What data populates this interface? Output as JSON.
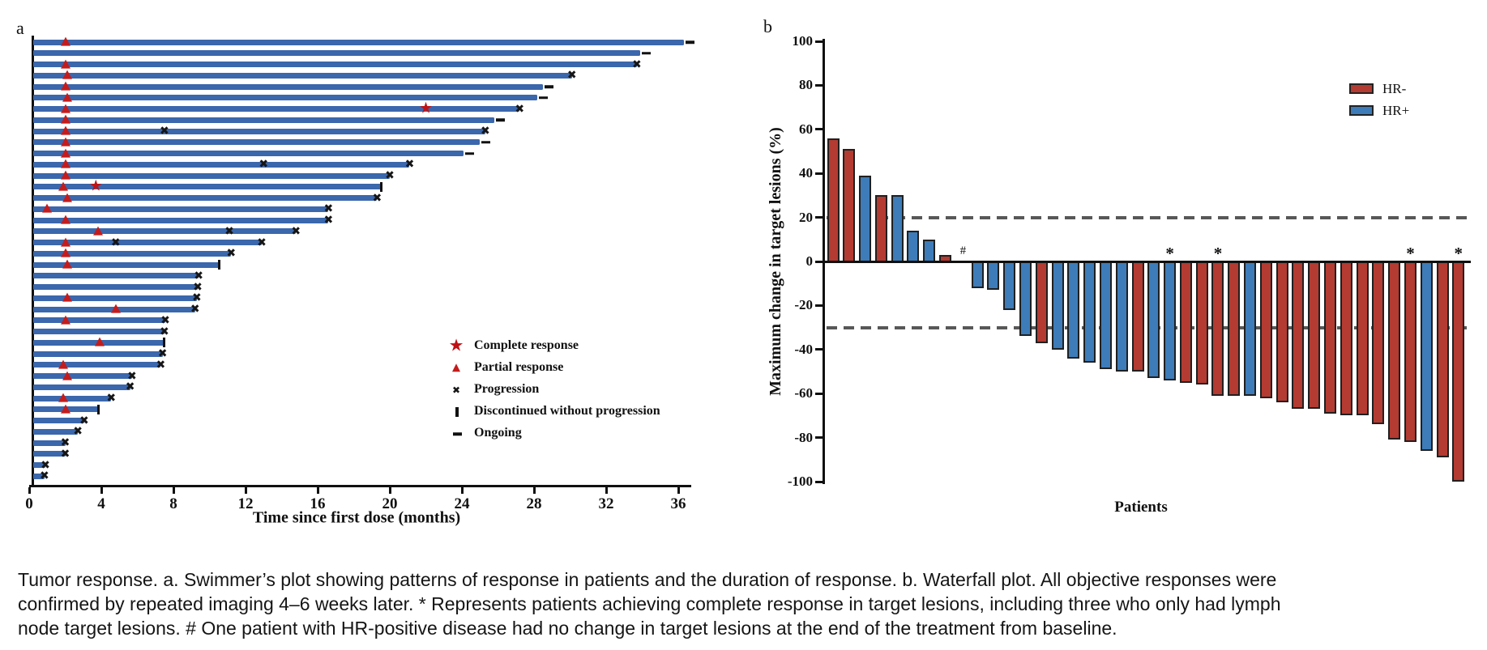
{
  "colors": {
    "swimmer_bar": "#3b67ac",
    "marker_red": "#c41c1c",
    "star_red": "#bf1216",
    "marker_black": "#161616",
    "hr_negative": "#b33b32",
    "hr_positive": "#3d7cb8",
    "reference_line": "#585858"
  },
  "caption": {
    "lines": [
      "Tumor response. a. Swimmer’s plot showing patterns of response in patients and the duration of response. b. Waterfall plot. All objective responses were",
      "confirmed by repeated imaging 4–6 weeks later. * Represents patients achieving complete response in target lesions, including three who only had lymph",
      "node target lesions. # One patient with HR-positive disease had no change in target lesions at the end of the treatment from baseline."
    ]
  },
  "chart_data": [
    {
      "type": "swimmer",
      "panel_tag": "a",
      "xlabel": "Time since first dose (months)",
      "x_ticks": [
        0,
        4,
        8,
        12,
        16,
        20,
        24,
        28,
        32,
        36
      ],
      "xlim": [
        0,
        36.7
      ],
      "grid": false,
      "legend_position": "center-right",
      "legend": [
        {
          "marker": "star",
          "label": "Complete response"
        },
        {
          "marker": "triangle",
          "label": "Partial response"
        },
        {
          "marker": "x",
          "label": "Progression"
        },
        {
          "marker": "bar",
          "label": "Discontinued without progression"
        },
        {
          "marker": "dash",
          "label": "Ongoing"
        }
      ],
      "patients": [
        {
          "end": 36.3,
          "status": "ongoing",
          "pr": 2.0
        },
        {
          "end": 33.9,
          "status": "ongoing"
        },
        {
          "end": 33.7,
          "status": "progression",
          "pr": 2.0
        },
        {
          "end": 30.1,
          "status": "progression",
          "pr": 2.1
        },
        {
          "end": 28.5,
          "status": "ongoing",
          "pr": 2.0
        },
        {
          "end": 28.2,
          "status": "ongoing",
          "pr": 2.1
        },
        {
          "end": 27.2,
          "status": "progression",
          "pr": 2.0,
          "cr": 22.0
        },
        {
          "end": 25.8,
          "status": "ongoing",
          "pr": 2.0
        },
        {
          "end": 25.3,
          "status": "progression",
          "pr": 2.0,
          "progression_events": [
            7.5
          ]
        },
        {
          "end": 25.0,
          "status": "ongoing",
          "pr": 2.0
        },
        {
          "end": 24.1,
          "status": "ongoing",
          "pr": 2.0
        },
        {
          "end": 21.1,
          "status": "progression",
          "pr": 2.0,
          "progression_events": [
            13.0
          ]
        },
        {
          "end": 20.0,
          "status": "progression",
          "pr": 2.0
        },
        {
          "end": 19.5,
          "status": "discontinued",
          "pr": 1.9,
          "cr": 3.7
        },
        {
          "end": 19.3,
          "status": "progression",
          "pr": 2.1
        },
        {
          "end": 16.6,
          "status": "progression",
          "pr": 1.0
        },
        {
          "end": 16.6,
          "status": "progression",
          "pr": 2.0
        },
        {
          "end": 14.8,
          "status": "progression",
          "pr": 3.8,
          "progression_events": [
            11.1
          ]
        },
        {
          "end": 12.9,
          "status": "progression",
          "pr": 2.0,
          "progression_events": [
            4.8
          ]
        },
        {
          "end": 11.2,
          "status": "progression",
          "pr": 2.0
        },
        {
          "end": 10.5,
          "status": "discontinued",
          "pr": 2.1
        },
        {
          "end": 9.4,
          "status": "progression"
        },
        {
          "end": 9.35,
          "status": "progression"
        },
        {
          "end": 9.3,
          "status": "progression",
          "pr": 2.1
        },
        {
          "end": 9.2,
          "status": "progression",
          "pr": 4.8
        },
        {
          "end": 7.55,
          "status": "progression",
          "pr": 2.0
        },
        {
          "end": 7.5,
          "status": "progression"
        },
        {
          "end": 7.45,
          "status": "discontinued",
          "pr": 3.9
        },
        {
          "end": 7.4,
          "status": "progression"
        },
        {
          "end": 7.3,
          "status": "progression",
          "pr": 1.9
        },
        {
          "end": 5.7,
          "status": "progression",
          "pr": 2.1
        },
        {
          "end": 5.6,
          "status": "progression"
        },
        {
          "end": 4.55,
          "status": "progression",
          "pr": 1.9
        },
        {
          "end": 3.8,
          "status": "discontinued",
          "pr": 2.0
        },
        {
          "end": 3.05,
          "status": "progression"
        },
        {
          "end": 2.7,
          "status": "progression"
        },
        {
          "end": 2.0,
          "status": "progression"
        },
        {
          "end": 2.0,
          "status": "progression"
        },
        {
          "end": 0.9,
          "status": "progression"
        },
        {
          "end": 0.85,
          "status": "progression"
        }
      ]
    },
    {
      "type": "waterfall-bar",
      "panel_tag": "b",
      "ylabel": "Maximum change in target lesions (%)",
      "xlabel": "Patients",
      "y_ticks": [
        100,
        80,
        60,
        40,
        20,
        0,
        -20,
        -40,
        -60,
        -80,
        -100
      ],
      "ylim": [
        -100,
        100
      ],
      "reference_lines": [
        20,
        -30
      ],
      "legend_position": "top-right",
      "legend": [
        {
          "label": "HR-",
          "color_key": "hr_negative"
        },
        {
          "label": "HR+",
          "color_key": "hr_positive"
        }
      ],
      "bars": [
        {
          "value": 56,
          "group": "HR-"
        },
        {
          "value": 51,
          "group": "HR-"
        },
        {
          "value": 39,
          "group": "HR+"
        },
        {
          "value": 30,
          "group": "HR-"
        },
        {
          "value": 30,
          "group": "HR+"
        },
        {
          "value": 14,
          "group": "HR+"
        },
        {
          "value": 10,
          "group": "HR+"
        },
        {
          "value": 3,
          "group": "HR-"
        },
        {
          "value": 0,
          "group": "HR+",
          "annotation": "#"
        },
        {
          "value": -12,
          "group": "HR+"
        },
        {
          "value": -13,
          "group": "HR+"
        },
        {
          "value": -22,
          "group": "HR+"
        },
        {
          "value": -34,
          "group": "HR+"
        },
        {
          "value": -37,
          "group": "HR-"
        },
        {
          "value": -40,
          "group": "HR+"
        },
        {
          "value": -44,
          "group": "HR+"
        },
        {
          "value": -46,
          "group": "HR+"
        },
        {
          "value": -49,
          "group": "HR+"
        },
        {
          "value": -50,
          "group": "HR+"
        },
        {
          "value": -50,
          "group": "HR-"
        },
        {
          "value": -53,
          "group": "HR+"
        },
        {
          "value": -54,
          "group": "HR+",
          "annotation": "*"
        },
        {
          "value": -55,
          "group": "HR-"
        },
        {
          "value": -56,
          "group": "HR-"
        },
        {
          "value": -61,
          "group": "HR-",
          "annotation": "*"
        },
        {
          "value": -61,
          "group": "HR-"
        },
        {
          "value": -61,
          "group": "HR+"
        },
        {
          "value": -62,
          "group": "HR-"
        },
        {
          "value": -64,
          "group": "HR-"
        },
        {
          "value": -67,
          "group": "HR-"
        },
        {
          "value": -67,
          "group": "HR-"
        },
        {
          "value": -69,
          "group": "HR-"
        },
        {
          "value": -70,
          "group": "HR-"
        },
        {
          "value": -70,
          "group": "HR-"
        },
        {
          "value": -74,
          "group": "HR-"
        },
        {
          "value": -81,
          "group": "HR-"
        },
        {
          "value": -82,
          "group": "HR-",
          "annotation": "*"
        },
        {
          "value": -86,
          "group": "HR+"
        },
        {
          "value": -89,
          "group": "HR-"
        },
        {
          "value": -100,
          "group": "HR-",
          "annotation": "*"
        }
      ]
    }
  ]
}
